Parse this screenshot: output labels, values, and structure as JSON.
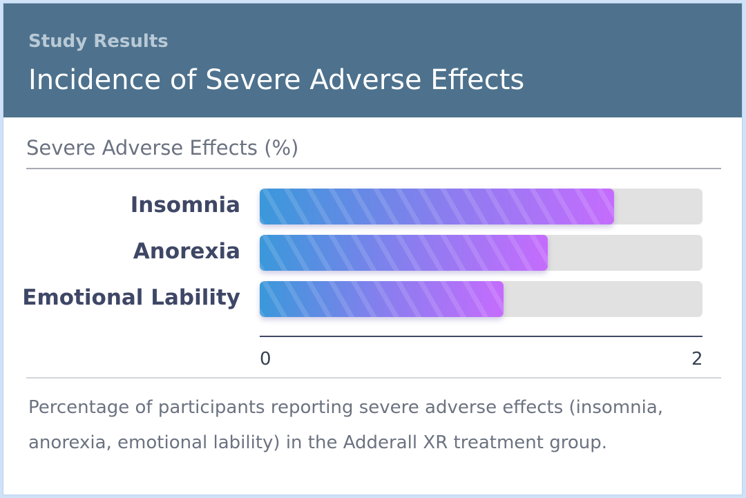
{
  "header": {
    "eyebrow": "Study Results",
    "title": "Incidence of Severe Adverse Effects"
  },
  "chart_data": {
    "type": "bar",
    "orientation": "horizontal",
    "title": "Severe Adverse Effects (%)",
    "categories": [
      "Insomnia",
      "Anorexia",
      "Emotional Lability"
    ],
    "values": [
      1.6,
      1.3,
      1.1
    ],
    "xlim": [
      0,
      2
    ],
    "ticks": [
      "0",
      "2"
    ],
    "colors": {
      "gradient_start": "#3a98da",
      "gradient_end": "#c56cfd",
      "track": "#e1e1e1"
    }
  },
  "caption": "Percentage of participants reporting severe adverse effects (insomnia, anorexia, emotional lability) in the Adderall XR treatment group."
}
